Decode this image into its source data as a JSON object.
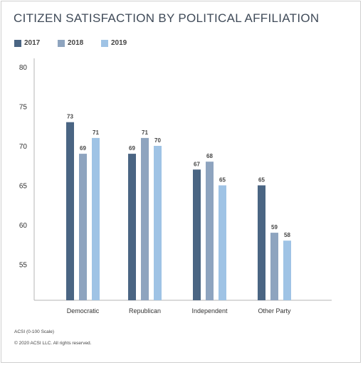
{
  "colors": {
    "s2017": "#4a6583",
    "s2018": "#8ea4bf",
    "s2019": "#9fc3e5"
  },
  "chart_data": {
    "type": "bar",
    "title": "CITIZEN SATISFACTION BY POLITICAL AFFILIATION",
    "categories": [
      "Democratic",
      "Republican",
      "Independent",
      "Other Party"
    ],
    "series": [
      {
        "name": "2017",
        "color": "#4a6583",
        "values": [
          73,
          69,
          67,
          65
        ]
      },
      {
        "name": "2018",
        "color": "#8ea4bf",
        "values": [
          69,
          71,
          68,
          59
        ]
      },
      {
        "name": "2019",
        "color": "#9fc3e5",
        "values": [
          71,
          70,
          65,
          58
        ]
      }
    ],
    "ylim": [
      50,
      80
    ],
    "yticks": [
      "80",
      "75",
      "70",
      "65",
      "60",
      "55"
    ],
    "legend_position": "top-left",
    "grid": false
  },
  "footnotes": {
    "scale": "ACSI (0-100 Scale)",
    "copyright": "© 2020 ACSI LLC. All rights reserved."
  }
}
